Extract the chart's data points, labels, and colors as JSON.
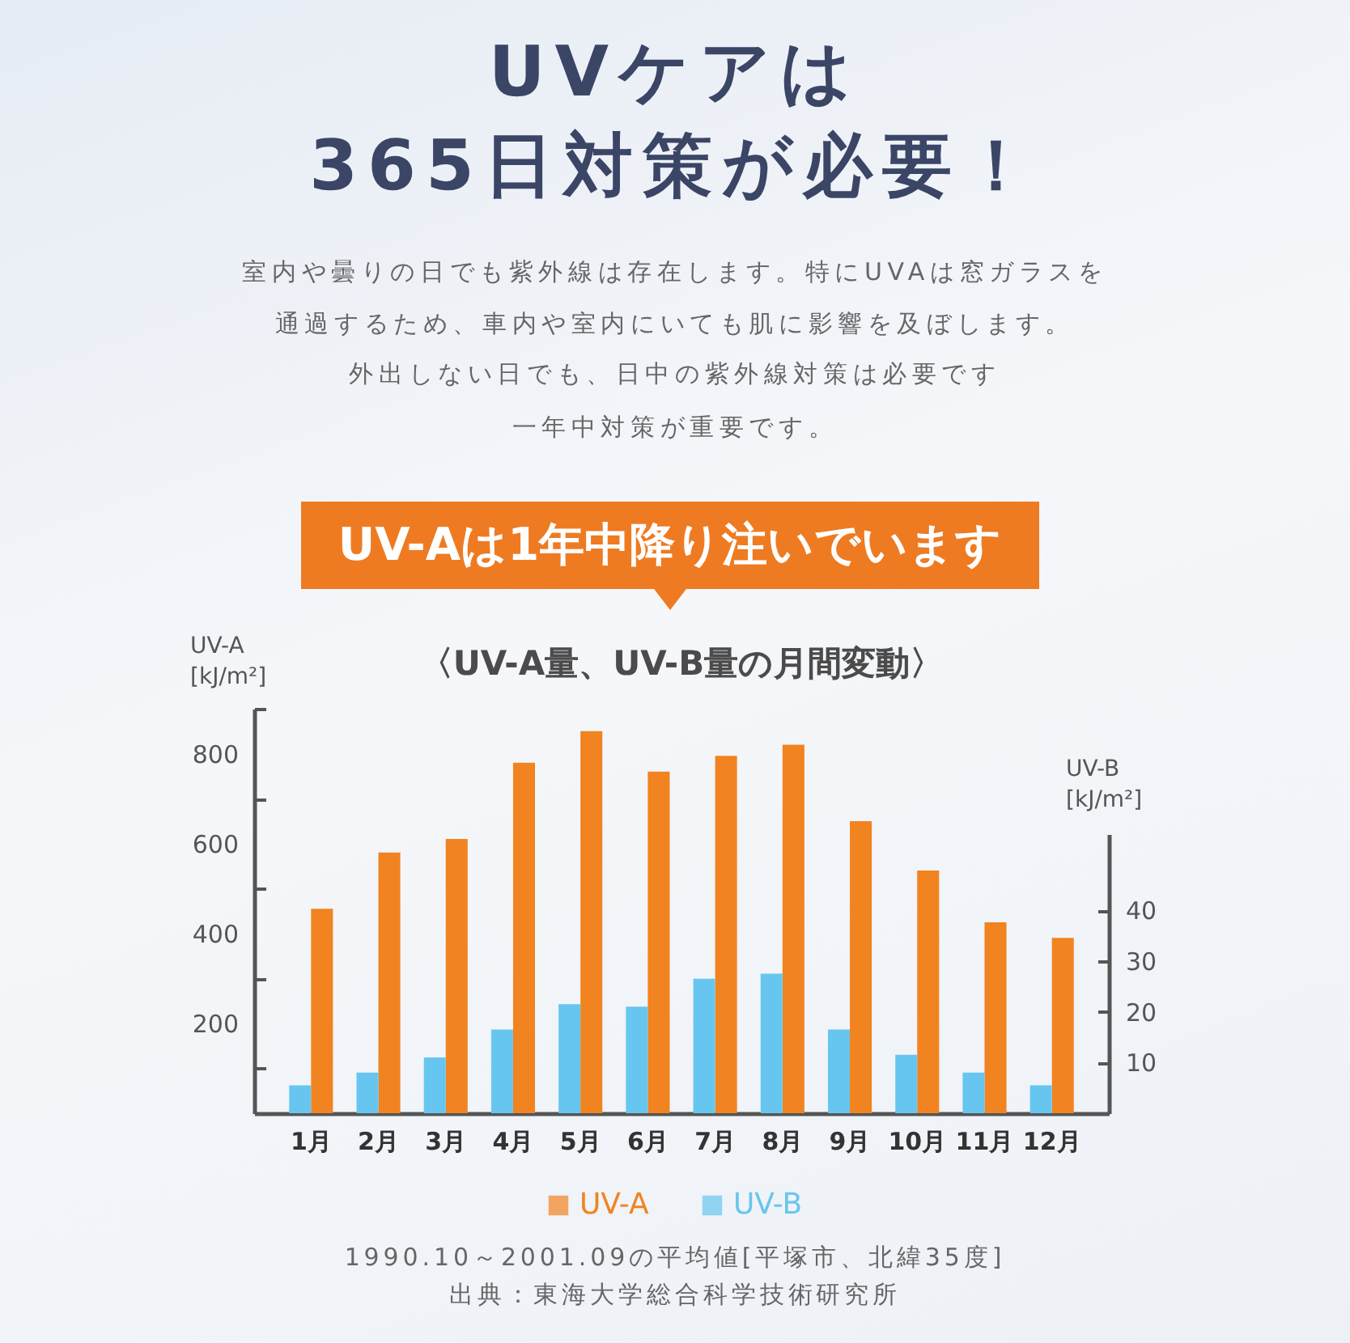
{
  "chart_data": {
    "type": "bar",
    "title": "UVケアは\n365日対策が必要！",
    "subtitle": "室内や曇りの日でも紫外線は存在します。特にUVAは窓ガラスを通過するため、車内や室内にいても肌に影響を及ぼします。",
    "ylabel": "UV-A\n[kJ/m²]",
    "y2label": "UV-B\n[kJ/m²]",
    "annotations": [
      "外出しない日でも、日中の紫外線対策は必要です",
      "一年中対策が重要です。",
      "UV-Aは1年中降り注いでいます",
      "〈UV-A量、UV-B量の月間変動〉",
      "1990.10～2001.09の平均値[平塚市、北緯35度]",
      "出典：東海大学総合科学技術研究所"
    ],
    "categories": [
      "1月",
      "2月",
      "3月",
      "4月",
      "5月",
      "6月",
      "7月",
      "8月",
      "9月",
      "10月",
      "11月",
      "12月"
    ],
    "series": [
      {
        "name": "UV-A",
        "color": "#f18320",
        "values": [
          455,
          580,
          610,
          780,
          850,
          760,
          795,
          820,
          650,
          540,
          425,
          390
        ]
      },
      {
        "name": "UV-B",
        "color": "#67c6ef",
        "axis": "y2",
        "values": [
          5.5,
          8,
          11,
          16.5,
          21.5,
          21,
          26.5,
          27.5,
          16.5,
          11.5,
          8,
          5.5
        ]
      }
    ],
    "ylim": [
      0,
      900
    ],
    "yticks": [
      {
        "value": 100,
        "label": null
      },
      200,
      {
        "value": 300,
        "label": null
      },
      400,
      {
        "value": 500,
        "label": null
      },
      600,
      {
        "value": 700,
        "label": null
      },
      800,
      {
        "value": 900,
        "label": null
      }
    ],
    "y2lim": [
      0,
      55
    ],
    "y2ticks": [
      10,
      20,
      30,
      40
    ],
    "legend": "bottom"
  }
}
